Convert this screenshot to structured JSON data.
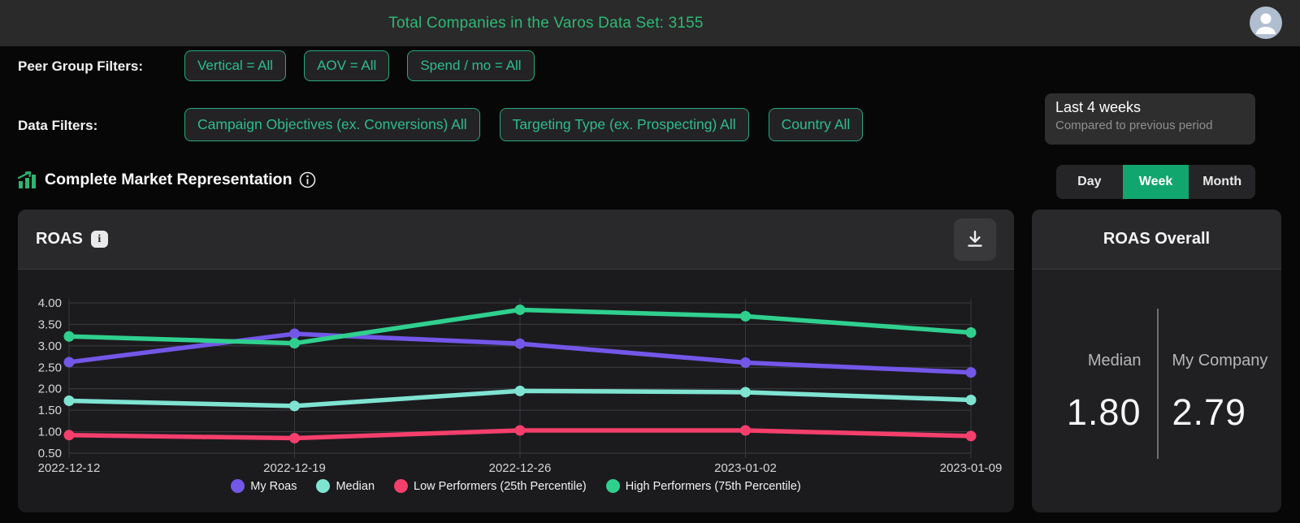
{
  "top_bar": {
    "title": "Total Companies in the Varos Data Set: 3155"
  },
  "filters": {
    "peer_group_label": "Peer Group Filters:",
    "peer_group_buttons": [
      "Vertical = All",
      "AOV = All",
      "Spend / mo = All"
    ],
    "data_label": "Data Filters:",
    "data_buttons": [
      "Campaign Objectives (ex. Conversions) All",
      "Targeting Type (ex. Prospecting) All",
      "Country All"
    ]
  },
  "period_card": {
    "title": "Last 4 weeks",
    "subtitle": "Compared to previous period"
  },
  "section": {
    "title": "Complete Market Representation"
  },
  "granularity_toggle": {
    "options": [
      "Day",
      "Week",
      "Month"
    ],
    "selected": "Week"
  },
  "chart_panel": {
    "title": "ROAS"
  },
  "chart_data": {
    "type": "line",
    "title": "ROAS",
    "x": [
      "2022-12-12",
      "2022-12-19",
      "2022-12-26",
      "2023-01-02",
      "2023-01-09"
    ],
    "series": [
      {
        "name": "My Roas",
        "color": "#7257e8",
        "values": [
          2.62,
          3.28,
          3.05,
          2.61,
          2.38
        ]
      },
      {
        "name": "Median",
        "color": "#7fe3d2",
        "values": [
          1.72,
          1.6,
          1.95,
          1.92,
          1.74
        ]
      },
      {
        "name": "Low Performers (25th Percentile)",
        "color": "#f43f6c",
        "values": [
          0.92,
          0.85,
          1.03,
          1.03,
          0.9
        ]
      },
      {
        "name": "High Performers (75th Percentile)",
        "color": "#2fd08e",
        "values": [
          3.22,
          3.06,
          3.84,
          3.69,
          3.31
        ]
      }
    ],
    "ylim": [
      0.5,
      4.0
    ],
    "yticks": [
      4.0,
      3.5,
      3.0,
      2.5,
      2.0,
      1.5,
      1.0,
      0.5
    ],
    "grid": true,
    "legend_position": "bottom"
  },
  "overall_panel": {
    "title": "ROAS Overall",
    "median_label": "Median",
    "median_value": "1.80",
    "company_label": "My Company",
    "company_value": "2.79"
  },
  "colors": {
    "accent_green": "#2eb873",
    "chip_border": "#2aa87c",
    "selected_toggle": "#12a66f"
  }
}
